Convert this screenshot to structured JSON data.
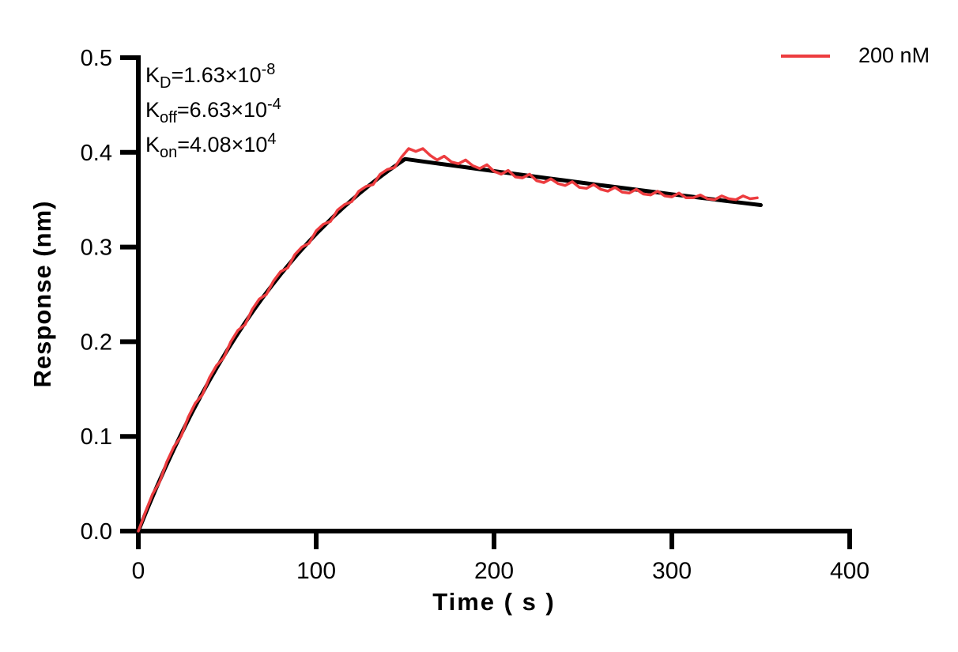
{
  "chart_data": {
    "type": "line",
    "title": "",
    "xlabel": "Time ( s )",
    "ylabel": "Response (nm)",
    "xlim": [
      0,
      400
    ],
    "ylim": [
      0,
      0.5
    ],
    "xticks": [
      0,
      100,
      200,
      300,
      400
    ],
    "xtick_labels": [
      "0",
      "100",
      "200",
      "300",
      "400"
    ],
    "yticks": [
      0,
      0.1,
      0.2,
      0.3,
      0.4,
      0.5
    ],
    "ytick_labels": [
      "0.0",
      "0.1",
      "0.2",
      "0.3",
      "0.4",
      "0.5"
    ],
    "grid": false,
    "axis_color": "#000000",
    "legend": {
      "position": "top-right",
      "entries": [
        {
          "label": "200 nM",
          "color": "#ed3c3f"
        }
      ]
    },
    "annotations": [
      {
        "pre": "K",
        "sub": "D",
        "mid": "=1.63×10",
        "sup": "-8"
      },
      {
        "pre": "K",
        "sub": "off",
        "mid": "=6.63×10",
        "sup": "-4"
      },
      {
        "pre": "K",
        "sub": "on",
        "mid": "=4.08×10",
        "sup": "4"
      }
    ],
    "series": [
      {
        "name": "fit",
        "color": "#000000",
        "stroke_width": 5,
        "x": [
          0,
          5,
          10,
          15,
          20,
          25,
          30,
          35,
          40,
          45,
          50,
          55,
          60,
          65,
          70,
          75,
          80,
          85,
          90,
          95,
          100,
          105,
          110,
          115,
          120,
          125,
          130,
          135,
          140,
          145,
          150,
          160,
          170,
          180,
          190,
          200,
          210,
          220,
          230,
          240,
          250,
          260,
          270,
          280,
          290,
          300,
          310,
          320,
          330,
          340,
          350
        ],
        "y": [
          0,
          0.0231,
          0.0452,
          0.0664,
          0.0866,
          0.106,
          0.1245,
          0.1423,
          0.1592,
          0.1755,
          0.191,
          0.2059,
          0.2201,
          0.2337,
          0.2468,
          0.2592,
          0.2711,
          0.2825,
          0.2935,
          0.3039,
          0.3139,
          0.3234,
          0.3326,
          0.3414,
          0.3497,
          0.3578,
          0.3654,
          0.3728,
          0.3798,
          0.3865,
          0.393,
          0.3904,
          0.3878,
          0.3853,
          0.3827,
          0.3802,
          0.3777,
          0.3752,
          0.3727,
          0.3703,
          0.3678,
          0.3654,
          0.363,
          0.3606,
          0.3582,
          0.3558,
          0.3535,
          0.3512,
          0.3488,
          0.3466,
          0.3443
        ]
      },
      {
        "name": "200 nM",
        "color": "#ed3c3f",
        "stroke_width": 3.5,
        "x": [
          0,
          4,
          8,
          12,
          16,
          20,
          24,
          28,
          32,
          36,
          40,
          44,
          48,
          52,
          56,
          60,
          64,
          68,
          72,
          76,
          80,
          84,
          88,
          92,
          96,
          100,
          104,
          108,
          112,
          116,
          120,
          124,
          128,
          132,
          136,
          140,
          144,
          148,
          152,
          156,
          160,
          164,
          168,
          172,
          176,
          180,
          184,
          188,
          192,
          196,
          200,
          204,
          208,
          212,
          216,
          220,
          224,
          228,
          232,
          236,
          240,
          244,
          248,
          252,
          256,
          260,
          264,
          268,
          272,
          276,
          280,
          284,
          288,
          292,
          296,
          300,
          304,
          308,
          312,
          316,
          320,
          324,
          328,
          332,
          336,
          340,
          344,
          348
        ],
        "y": [
          0,
          0.02,
          0.039,
          0.052,
          0.073,
          0.089,
          0.1,
          0.12,
          0.135,
          0.144,
          0.162,
          0.175,
          0.183,
          0.2,
          0.212,
          0.218,
          0.234,
          0.245,
          0.25,
          0.264,
          0.274,
          0.278,
          0.292,
          0.3,
          0.304,
          0.317,
          0.324,
          0.327,
          0.339,
          0.345,
          0.348,
          0.359,
          0.364,
          0.366,
          0.377,
          0.382,
          0.384,
          0.395,
          0.404,
          0.401,
          0.404,
          0.397,
          0.392,
          0.396,
          0.39,
          0.388,
          0.392,
          0.386,
          0.383,
          0.387,
          0.38,
          0.377,
          0.381,
          0.374,
          0.373,
          0.377,
          0.37,
          0.368,
          0.372,
          0.367,
          0.365,
          0.369,
          0.363,
          0.362,
          0.366,
          0.361,
          0.359,
          0.363,
          0.358,
          0.357,
          0.361,
          0.356,
          0.355,
          0.359,
          0.354,
          0.353,
          0.357,
          0.352,
          0.352,
          0.355,
          0.351,
          0.35,
          0.354,
          0.351,
          0.35,
          0.354,
          0.351,
          0.352
        ]
      }
    ],
    "kinetic_constants": {
      "KD": "1.63e-8",
      "Koff": "6.63e-4",
      "Kon": "4.08e4"
    }
  }
}
